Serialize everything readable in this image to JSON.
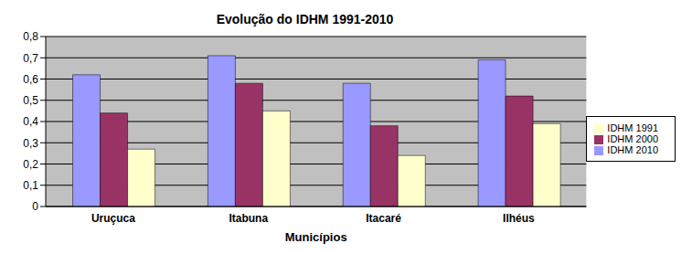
{
  "chart_data": {
    "type": "bar",
    "title": "Evolução do IDHM 1991-2010",
    "x_label": "Municípios",
    "categories": [
      "Uruçuca",
      "Itabuna",
      "Itacaré",
      "Ilhéus"
    ],
    "series": [
      {
        "name": "IDHM 2010",
        "color": "#9999ff",
        "values": [
          0.62,
          0.71,
          0.58,
          0.69
        ]
      },
      {
        "name": "IDHM 2000",
        "color": "#993366",
        "values": [
          0.44,
          0.58,
          0.38,
          0.52
        ]
      },
      {
        "name": "IDHM 1991",
        "color": "#ffffcc",
        "values": [
          0.27,
          0.45,
          0.24,
          0.39
        ]
      }
    ],
    "ylim": [
      0,
      0.8
    ],
    "yticks": [
      0,
      {
        "value": 0.1,
        "label": "0,1"
      },
      {
        "value": 0.2,
        "label": "0,2"
      },
      {
        "value": 0.3,
        "label": "0,3"
      },
      {
        "value": 0.4,
        "label": "0,4"
      },
      {
        "value": 0.5,
        "label": "0,5"
      },
      {
        "value": 0.6,
        "label": "0,6"
      },
      {
        "value": 0.7,
        "label": "0,7"
      },
      {
        "value": 0.8,
        "label": "0,8"
      }
    ],
    "grid": true,
    "legend": "right"
  }
}
